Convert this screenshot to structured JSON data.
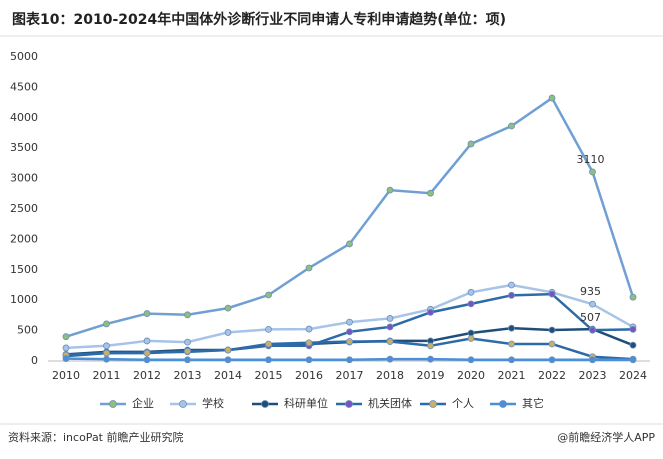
{
  "chart_data": {
    "type": "line",
    "title": "图表10：2010-2024年中国体外诊断行业不同申请人专利申请趋势(单位：项)",
    "source": "资料来源：incoPat 前瞻产业研究院",
    "credit": "@前瞻经济学人APP",
    "categories": [
      "2010",
      "2011",
      "2012",
      "2013",
      "2014",
      "2015",
      "2016",
      "2017",
      "2018",
      "2019",
      "2020",
      "2021",
      "2022",
      "2023",
      "2024"
    ],
    "ylim": [
      0,
      5000
    ],
    "yticks": [
      0,
      500,
      1000,
      1500,
      2000,
      2500,
      3000,
      3500,
      4000,
      4500,
      5000
    ],
    "grid": false,
    "legend": "bottom",
    "series": [
      {
        "name": "企业",
        "color": "#6f9fd3",
        "marker_color": "#8fbf7f",
        "values": [
          400,
          610,
          780,
          760,
          870,
          1085,
          1530,
          1925,
          2810,
          2760,
          3570,
          3865,
          4325,
          3110,
          1050
        ],
        "value_labels": [
          null,
          null,
          null,
          null,
          null,
          null,
          null,
          null,
          null,
          null,
          null,
          null,
          null,
          "3110",
          null
        ]
      },
      {
        "name": "学校",
        "color": "#a7c4e8",
        "marker_color": "#a7c4e8",
        "values": [
          215,
          250,
          330,
          310,
          470,
          520,
          525,
          640,
          700,
          850,
          1130,
          1250,
          1130,
          935,
          560
        ],
        "value_labels": [
          null,
          null,
          null,
          null,
          null,
          null,
          null,
          null,
          null,
          null,
          null,
          null,
          null,
          "935",
          null
        ]
      },
      {
        "name": "科研单位",
        "color": "#1f4e79",
        "marker_color": "#1f4e79",
        "values": [
          110,
          150,
          150,
          180,
          180,
          260,
          280,
          310,
          330,
          330,
          460,
          540,
          510,
          525,
          260
        ]
      },
      {
        "name": "机关团体",
        "color": "#2d6aa8",
        "marker_color": "#7b52c2",
        "values": [
          80,
          130,
          140,
          150,
          180,
          250,
          250,
          480,
          560,
          800,
          940,
          1080,
          1100,
          507,
          520
        ],
        "value_labels": [
          null,
          null,
          null,
          null,
          null,
          null,
          null,
          null,
          null,
          null,
          null,
          null,
          null,
          "507",
          null
        ]
      },
      {
        "name": "个人",
        "color": "#2c6aa8",
        "marker_color": "#c9b06a",
        "values": [
          100,
          130,
          130,
          160,
          180,
          280,
          300,
          320,
          320,
          250,
          370,
          280,
          280,
          70,
          30
        ]
      },
      {
        "name": "其它",
        "color": "#4a8fd8",
        "marker_color": "#4a8fd8",
        "values": [
          40,
          30,
          20,
          20,
          20,
          20,
          20,
          20,
          30,
          30,
          20,
          20,
          20,
          20,
          20
        ]
      }
    ]
  }
}
